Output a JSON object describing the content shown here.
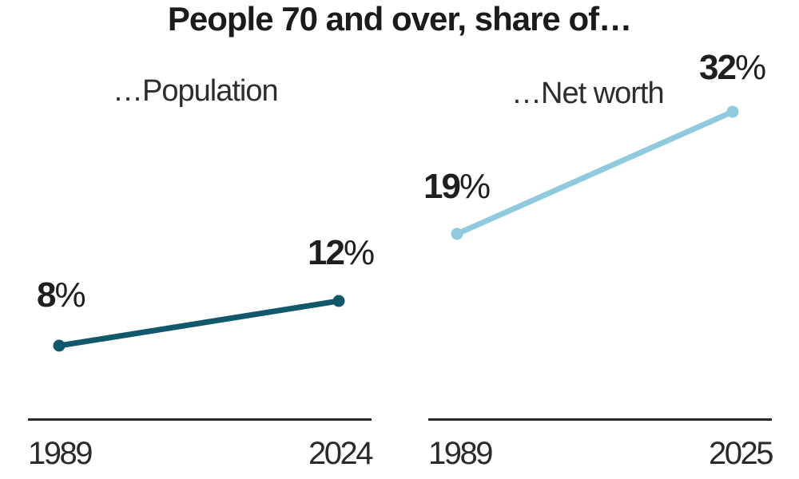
{
  "header": {
    "title": "People 70 and over, share of…"
  },
  "colors": {
    "population_line": "#10586a",
    "networth_line": "#8fcade",
    "axis": "#282828",
    "text": "#1f1f1f"
  },
  "chart_data": [
    {
      "type": "line",
      "title": "…Population",
      "x": [
        1989,
        2024
      ],
      "values": [
        8,
        12
      ],
      "unit": "%",
      "point_labels": [
        {
          "number": "8",
          "suffix": "%"
        },
        {
          "number": "12",
          "suffix": "%"
        }
      ],
      "x_ticks": [
        "1989",
        "2024"
      ],
      "line_color": "#10586a",
      "grid": false,
      "legend": false
    },
    {
      "type": "line",
      "title": "…Net worth",
      "x": [
        1989,
        2025
      ],
      "values": [
        19,
        32
      ],
      "unit": "%",
      "point_labels": [
        {
          "number": "19",
          "suffix": "%"
        },
        {
          "number": "32",
          "suffix": "%"
        }
      ],
      "x_ticks": [
        "1989",
        "2025"
      ],
      "line_color": "#8fcade",
      "grid": false,
      "legend": false
    }
  ]
}
